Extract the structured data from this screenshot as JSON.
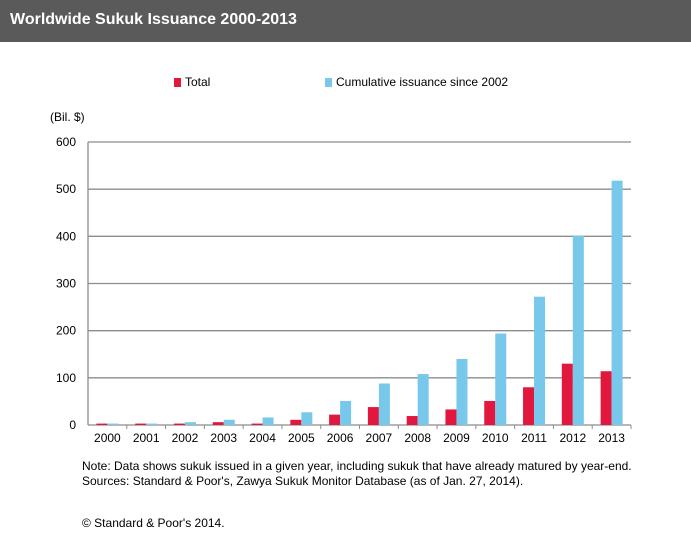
{
  "chart_data": {
    "type": "bar",
    "title": "Worldwide Sukuk Issuance  2000-2013",
    "ylabel": "(Bil. $)",
    "ylim": [
      0,
      600
    ],
    "yticks": [
      0,
      100,
      200,
      300,
      400,
      500,
      600
    ],
    "grid": true,
    "legend_placement": "top",
    "categories": [
      "2000",
      "2001",
      "2002",
      "2003",
      "2004",
      "2005",
      "2006",
      "2007",
      "2008",
      "2009",
      "2010",
      "2011",
      "2012",
      "2013"
    ],
    "series": [
      {
        "name": "Total",
        "color": "#e2173d",
        "values": [
          3,
          3,
          3,
          6,
          3,
          11,
          22,
          38,
          19,
          33,
          51,
          80,
          130,
          114
        ]
      },
      {
        "name": "Cumulative issuance since 2002",
        "color": "#77c8ea",
        "values": [
          3,
          3,
          6,
          11,
          16,
          27,
          51,
          88,
          108,
          140,
          194,
          272,
          401,
          518
        ]
      }
    ],
    "note": "Note: Data shows sukuk issued in a given year, including sukuk that have already matured by year-end. Sources: Standard & Poor's, Zawya Sukuk Monitor Database  (as of Jan. 27, 2014).",
    "copyright": "© Standard & Poor's 2014."
  }
}
